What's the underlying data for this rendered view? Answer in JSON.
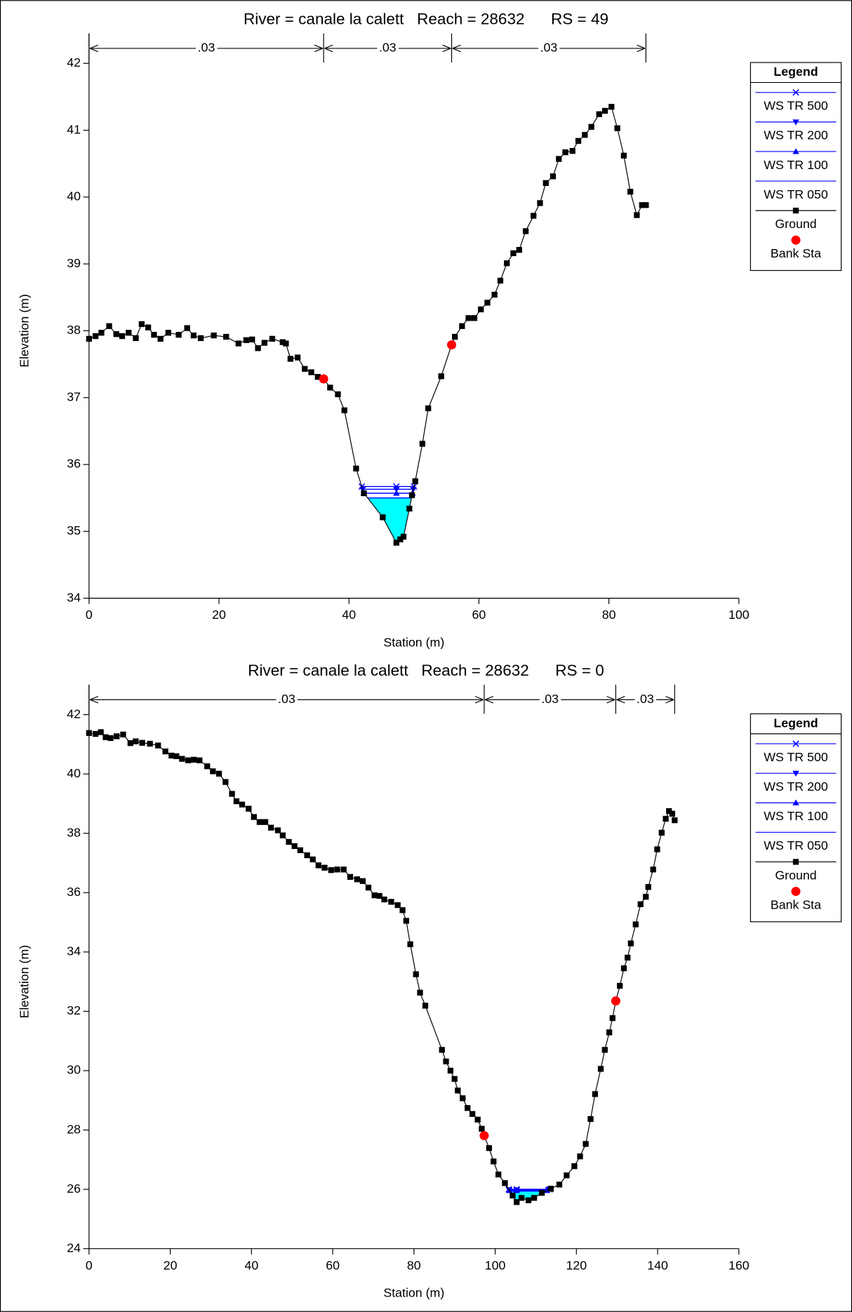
{
  "chart_data": [
    {
      "type": "line",
      "title": "River = canale la calett   Reach = 28632      RS = 49",
      "xlabel": "Station (m)",
      "ylabel": "Elevation (m)",
      "legend_title": "Legend",
      "legend": "right",
      "xlim": [
        0,
        100
      ],
      "xticks": [
        0,
        20,
        40,
        60,
        80,
        100
      ],
      "ylim": [
        34,
        42
      ],
      "yticks": [
        34,
        35,
        36,
        37,
        38,
        39,
        40,
        41,
        42
      ],
      "roughness": {
        "values": [
          0.03,
          0.03,
          0.03
        ],
        "value_labels": [
          ".03",
          ".03",
          ".03"
        ]
      },
      "series": [
        {
          "name": "WS TR 500",
          "color": "#0000ff",
          "marker": "x",
          "level": 35.67
        },
        {
          "name": "WS TR 200",
          "color": "#0000ff",
          "marker": "tri-down",
          "level": 35.63
        },
        {
          "name": "WS TR 100",
          "color": "#0000ff",
          "marker": "tri-up",
          "level": 35.57
        },
        {
          "name": "WS TR 050",
          "color": "#0000ff",
          "marker": "none",
          "level": 35.5,
          "fill_color": "#00ffff"
        },
        {
          "name": "Ground",
          "color": "#000000",
          "marker": "square",
          "x": [
            0,
            1,
            1.9,
            3.1,
            4.2,
            5.1,
            6.1,
            7.2,
            8.1,
            9.1,
            10,
            11,
            12.2,
            13.8,
            15.1,
            16.1,
            17.2,
            19.2,
            21.1,
            23,
            24.2,
            25.1,
            26,
            27,
            28.2,
            29.8,
            30.3,
            31,
            32.1,
            33.2,
            34.2,
            35.2,
            36.1,
            37.1,
            38.3,
            39.3,
            41.1,
            42.3,
            45.2,
            47.3,
            47.9,
            48.4,
            49.3,
            49.7,
            50.2,
            51.3,
            52.2,
            54.2,
            55.8,
            56.3,
            57.4,
            58.4,
            59.3,
            60.3,
            61.3,
            62.4,
            63.3,
            64.3,
            65.3,
            66.2,
            67.2,
            68.4,
            69.4,
            70.3,
            71.4,
            72.3,
            73.3,
            74.4,
            75.3,
            76.3,
            77.3,
            78.5,
            79.4,
            80.4,
            81.3,
            82.3,
            83.3,
            84.3,
            85.1,
            85.7
          ],
          "values": [
            37.88,
            37.92,
            37.97,
            38.07,
            37.95,
            37.92,
            37.97,
            37.89,
            38.1,
            38.05,
            37.94,
            37.88,
            37.97,
            37.94,
            38.04,
            37.93,
            37.89,
            37.93,
            37.91,
            37.81,
            37.86,
            37.87,
            37.74,
            37.82,
            37.88,
            37.83,
            37.81,
            37.58,
            37.6,
            37.43,
            37.38,
            37.31,
            37.28,
            37.15,
            37.05,
            36.81,
            35.94,
            35.57,
            35.21,
            34.83,
            34.88,
            34.92,
            35.34,
            35.54,
            35.75,
            36.31,
            36.84,
            37.32,
            37.79,
            37.91,
            38.07,
            38.19,
            38.19,
            38.32,
            38.42,
            38.54,
            38.75,
            39.01,
            39.16,
            39.21,
            39.49,
            39.72,
            39.91,
            40.21,
            40.31,
            40.57,
            40.67,
            40.69,
            40.84,
            40.93,
            41.05,
            41.24,
            41.29,
            41.35,
            41.03,
            40.62,
            40.08,
            39.73,
            39.88,
            39.88
          ]
        },
        {
          "name": "Bank Sta",
          "color": "#ff0000",
          "marker": "circle",
          "x": [
            36.1,
            55.8
          ],
          "values": [
            37.28,
            37.79
          ]
        }
      ]
    },
    {
      "type": "line",
      "title": "River = canale la calett   Reach = 28632      RS = 0",
      "xlabel": "Station (m)",
      "ylabel": "Elevation (m)",
      "legend_title": "Legend",
      "legend": "right",
      "xlim": [
        0,
        160
      ],
      "xticks": [
        0,
        20,
        40,
        60,
        80,
        100,
        120,
        140,
        160
      ],
      "ylim": [
        24,
        42
      ],
      "yticks": [
        24,
        26,
        28,
        30,
        32,
        34,
        36,
        38,
        40,
        42
      ],
      "roughness": {
        "values": [
          0.03,
          0.03,
          0.03
        ],
        "value_labels": [
          ".03",
          ".03",
          ".03"
        ]
      },
      "series": [
        {
          "name": "WS TR 500",
          "color": "#0000ff",
          "marker": "x",
          "level": 26.0
        },
        {
          "name": "WS TR 200",
          "color": "#0000ff",
          "marker": "tri-down",
          "level": 25.98
        },
        {
          "name": "WS TR 100",
          "color": "#0000ff",
          "marker": "tri-up",
          "level": 25.96
        },
        {
          "name": "WS TR 050",
          "color": "#0000ff",
          "marker": "none",
          "level": 25.94,
          "fill_color": "#00ffff"
        },
        {
          "name": "Ground",
          "color": "#000000",
          "marker": "square",
          "x": [
            0,
            1.6,
            2.9,
            4.1,
            5.3,
            6.8,
            8.4,
            10.2,
            11.5,
            13.1,
            15,
            17,
            18.8,
            20.3,
            21.5,
            22.9,
            24.4,
            25.8,
            27.2,
            29.1,
            30.5,
            32,
            33.6,
            35.2,
            36.3,
            37.7,
            39.3,
            40.6,
            42,
            43.4,
            44.8,
            46.5,
            47.7,
            49.2,
            50.6,
            52,
            53.7,
            55.1,
            56.5,
            58,
            59.6,
            61.1,
            62.7,
            64.3,
            66,
            67.4,
            68.8,
            70.3,
            71.5,
            72.7,
            74.4,
            76,
            77.2,
            78.1,
            79.1,
            80.5,
            81.5,
            82.8,
            86.9,
            87.9,
            89,
            90,
            90.8,
            92,
            93.2,
            94.4,
            95.7,
            96.7,
            97.3,
            98.5,
            99.6,
            100.8,
            102.4,
            104.3,
            105.3,
            106.5,
            108.2,
            109.6,
            111.5,
            113.7,
            115.8,
            117.6,
            119.5,
            120.9,
            122.3,
            123.5,
            124.6,
            126,
            127,
            128.1,
            128.9,
            129.7,
            130.7,
            131.7,
            132.6,
            133.4,
            134.6,
            135.8,
            137.1,
            137.7,
            138.9,
            139.9,
            141,
            142,
            142.8,
            143.6,
            144.2
          ],
          "values": [
            41.38,
            41.35,
            41.41,
            41.24,
            41.21,
            41.27,
            41.33,
            41.04,
            41.1,
            41.05,
            41.02,
            40.96,
            40.76,
            40.62,
            40.6,
            40.51,
            40.46,
            40.48,
            40.46,
            40.26,
            40.09,
            40.01,
            39.73,
            39.33,
            39.08,
            38.97,
            38.83,
            38.55,
            38.38,
            38.38,
            38.19,
            38.1,
            37.93,
            37.71,
            37.57,
            37.43,
            37.26,
            37.12,
            36.92,
            36.84,
            36.76,
            36.78,
            36.78,
            36.53,
            36.45,
            36.39,
            36.17,
            35.91,
            35.89,
            35.77,
            35.69,
            35.58,
            35.41,
            35.05,
            34.26,
            33.25,
            32.63,
            32.19,
            30.7,
            30.31,
            30,
            29.72,
            29.33,
            29.07,
            28.74,
            28.54,
            28.35,
            28.04,
            27.81,
            27.39,
            26.94,
            26.5,
            26.21,
            25.79,
            25.57,
            25.71,
            25.63,
            25.71,
            25.88,
            26.02,
            26.16,
            26.47,
            26.78,
            27.11,
            27.53,
            28.37,
            29.21,
            30.06,
            30.7,
            31.29,
            31.77,
            32.35,
            32.86,
            33.45,
            33.81,
            34.29,
            34.93,
            35.61,
            35.86,
            36.19,
            36.78,
            37.46,
            38.02,
            38.49,
            38.75,
            38.66,
            38.44
          ]
        },
        {
          "name": "Bank Sta",
          "color": "#ff0000",
          "marker": "circle",
          "x": [
            97.3,
            129.7
          ],
          "values": [
            27.81,
            32.35
          ]
        }
      ]
    }
  ]
}
